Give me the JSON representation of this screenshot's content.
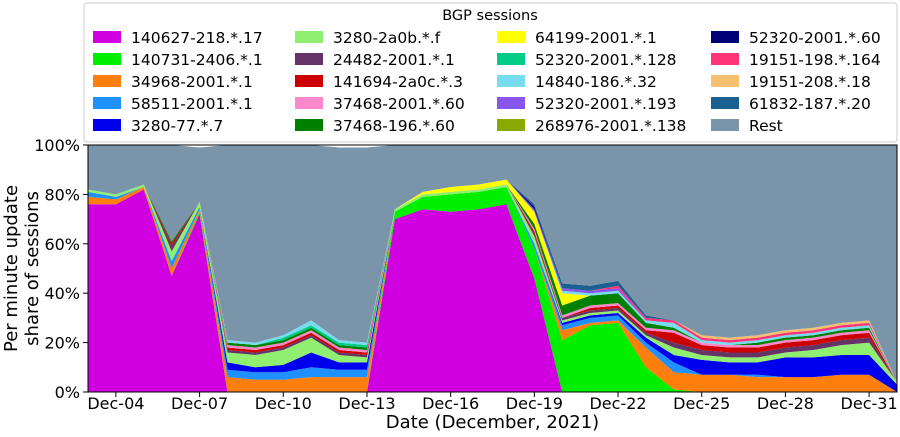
{
  "chart_data": {
    "type": "area",
    "stacked": true,
    "title": "",
    "xlabel": "Date (December, 2021)",
    "ylabel_lines": [
      "Per minute update",
      "share of sessions"
    ],
    "ylim": [
      0,
      100
    ],
    "xlim": [
      3,
      32
    ],
    "yticks": [
      0,
      20,
      40,
      60,
      80,
      100
    ],
    "ytick_labels": [
      "0%",
      "20%",
      "40%",
      "60%",
      "80%",
      "100%"
    ],
    "xticks": [
      4,
      7,
      10,
      13,
      16,
      19,
      22,
      25,
      28,
      31
    ],
    "xtick_labels": [
      "Dec-04",
      "Dec-07",
      "Dec-10",
      "Dec-13",
      "Dec-16",
      "Dec-19",
      "Dec-22",
      "Dec-25",
      "Dec-28",
      "Dec-31"
    ],
    "grid": false,
    "legend_title": "BGP sessions",
    "legend_position": "top",
    "legend_columns": 4,
    "x": [
      3.0,
      4.0,
      5.0,
      6.0,
      7.0,
      8.0,
      9.0,
      10.0,
      11.0,
      12.0,
      13.0,
      14.0,
      15.0,
      16.0,
      17.0,
      18.0,
      19.0,
      20.0,
      21.0,
      22.0,
      23.0,
      24.0,
      25.0,
      26.0,
      27.0,
      28.0,
      29.0,
      30.0,
      31.0,
      32.0
    ],
    "series": [
      {
        "name": "140627-218.*.17",
        "color": "#d000e0",
        "values": [
          76,
          76,
          82,
          47,
          72,
          0,
          0,
          0,
          0,
          0,
          0,
          70,
          74,
          73,
          74,
          76,
          46,
          0,
          0,
          0,
          0,
          0,
          0,
          0,
          0,
          0,
          0,
          0,
          0,
          0
        ]
      },
      {
        "name": "140731-2406.*.1",
        "color": "#00ee00",
        "values": [
          0,
          0,
          0,
          0,
          1,
          0,
          0,
          0,
          0,
          0,
          0,
          3,
          5,
          7,
          7,
          7,
          12,
          21,
          27,
          28,
          10,
          1,
          0,
          0,
          0,
          0,
          0,
          0,
          0,
          0
        ]
      },
      {
        "name": "34968-2001.*.1",
        "color": "#ff7f0e",
        "values": [
          3,
          2,
          1,
          3,
          1,
          6,
          5,
          5,
          6,
          6,
          6,
          0,
          0,
          0,
          0,
          0,
          0,
          4,
          1,
          1,
          8,
          7,
          7,
          7,
          6,
          6,
          6,
          7,
          7,
          0
        ]
      },
      {
        "name": "58511-2001.*.1",
        "color": "#1e90ff",
        "values": [
          2,
          1,
          0,
          3,
          1,
          3,
          3,
          3,
          4,
          3,
          3,
          0,
          0,
          0,
          0,
          0,
          2,
          2,
          2,
          2,
          2,
          4,
          0,
          0,
          1,
          0,
          0,
          0,
          0,
          0
        ]
      },
      {
        "name": "3280-77.*.7",
        "color": "#0000ee",
        "values": [
          0,
          0,
          0,
          0,
          0,
          3,
          2,
          3,
          6,
          3,
          3,
          0,
          0,
          0,
          0,
          0,
          0,
          1,
          1,
          1,
          2,
          3,
          6,
          5,
          5,
          8,
          8,
          8,
          8,
          3
        ]
      },
      {
        "name": "3280-2a0b.*.f",
        "color": "#90ee70",
        "values": [
          1,
          1,
          1,
          4,
          2,
          4,
          5,
          6,
          6,
          3,
          2,
          1,
          1,
          1,
          1,
          1,
          3,
          1,
          1,
          1,
          1,
          3,
          2,
          2,
          2,
          2,
          3,
          4,
          5,
          1
        ]
      },
      {
        "name": "24482-2001.*.1",
        "color": "#663366",
        "values": [
          0,
          0,
          0,
          2,
          0,
          1,
          1,
          1,
          1,
          1,
          1,
          0,
          0,
          0,
          0,
          0,
          1,
          1,
          1,
          1,
          1,
          2,
          2,
          2,
          2,
          2,
          2,
          2,
          2,
          0
        ]
      },
      {
        "name": "141694-2a0c.*.3",
        "color": "#cc0000",
        "values": [
          0,
          0,
          0,
          1,
          0,
          1,
          1,
          1,
          1,
          1,
          1,
          0,
          0,
          0,
          0,
          0,
          1,
          0,
          1,
          1,
          1,
          4,
          2,
          2,
          2,
          2,
          2,
          2,
          2,
          0
        ]
      },
      {
        "name": "37468-2001.*.60",
        "color": "#ff88cc",
        "values": [
          0,
          0,
          0,
          0,
          0,
          1,
          1,
          1,
          1,
          1,
          1,
          0,
          0,
          0,
          0,
          0,
          1,
          1,
          1,
          1,
          1,
          1,
          1,
          1,
          1,
          1,
          1,
          1,
          1,
          0
        ]
      },
      {
        "name": "37468-196.*.60",
        "color": "#008000",
        "values": [
          0,
          0,
          0,
          1,
          0,
          1,
          1,
          1,
          1,
          1,
          1,
          0,
          0,
          0,
          0,
          0,
          2,
          4,
          4,
          4,
          2,
          1,
          0,
          0,
          1,
          1,
          1,
          1,
          1,
          0
        ]
      },
      {
        "name": "64199-2001.*.1",
        "color": "#ffff00",
        "values": [
          0,
          0,
          0,
          0,
          0,
          0,
          0,
          0,
          0,
          0,
          0,
          0,
          1,
          2,
          2,
          2,
          5,
          5,
          0,
          0,
          0,
          0,
          0,
          0,
          0,
          0,
          0,
          0,
          0,
          0
        ]
      },
      {
        "name": "52320-2001.*.128",
        "color": "#00cc88",
        "values": [
          0,
          0,
          0,
          0,
          0,
          0,
          0,
          1,
          1,
          1,
          1,
          0,
          0,
          0,
          0,
          0,
          0,
          0,
          0,
          0,
          0,
          0,
          0,
          0,
          0,
          0,
          0,
          0,
          0,
          0
        ]
      },
      {
        "name": "14840-186.*.32",
        "color": "#77ddee",
        "values": [
          0,
          0,
          0,
          0,
          0,
          1,
          1,
          1,
          2,
          1,
          1,
          0,
          0,
          0,
          0,
          0,
          0,
          1,
          1,
          1,
          1,
          2,
          1,
          1,
          1,
          1,
          1,
          1,
          1,
          0
        ]
      },
      {
        "name": "52320-2001.*.193",
        "color": "#8855ee",
        "values": [
          0,
          0,
          0,
          0,
          0,
          0,
          0,
          0,
          0,
          0,
          0,
          0,
          0,
          0,
          0,
          0,
          1,
          1,
          1,
          1,
          0,
          0,
          0,
          0,
          0,
          0,
          0,
          0,
          0,
          0
        ]
      },
      {
        "name": "268976-2001.*.138",
        "color": "#88aa00",
        "values": [
          0,
          0,
          0,
          0,
          0,
          0,
          0,
          0,
          0,
          0,
          0,
          0,
          0,
          0,
          0,
          0,
          0,
          0,
          0,
          0,
          0,
          0,
          0,
          0,
          0,
          0,
          0,
          0,
          0,
          0
        ]
      },
      {
        "name": "52320-2001.*.60",
        "color": "#000077",
        "values": [
          0,
          0,
          0,
          0,
          0,
          0,
          0,
          0,
          0,
          0,
          0,
          0,
          0,
          0,
          0,
          0,
          1,
          0,
          0,
          0,
          0,
          0,
          0,
          0,
          0,
          0,
          0,
          0,
          0,
          0
        ]
      },
      {
        "name": "19151-198.*.164",
        "color": "#ff3377",
        "values": [
          0,
          0,
          0,
          0,
          0,
          0,
          0,
          0,
          0,
          0,
          0,
          0,
          0,
          0,
          0,
          0,
          0,
          0,
          0,
          1,
          1,
          1,
          1,
          1,
          1,
          1,
          1,
          1,
          1,
          0
        ]
      },
      {
        "name": "19151-208.*.18",
        "color": "#f5c070",
        "values": [
          0,
          0,
          0,
          0,
          0,
          0,
          0,
          0,
          0,
          0,
          0,
          0,
          0,
          0,
          0,
          0,
          0,
          0,
          0,
          0,
          0,
          0,
          1,
          1,
          1,
          1,
          1,
          1,
          1,
          0
        ]
      },
      {
        "name": "61832-187.*.20",
        "color": "#1a6090",
        "values": [
          0,
          0,
          0,
          0,
          0,
          0,
          0,
          0,
          0,
          0,
          0,
          0,
          0,
          0,
          0,
          0,
          1,
          2,
          2,
          2,
          1,
          0,
          0,
          0,
          0,
          0,
          0,
          0,
          0,
          0
        ]
      },
      {
        "name": "Rest",
        "color": "#7a95aa",
        "values": [
          18,
          20,
          16,
          39,
          22,
          79,
          80,
          77,
          71,
          78,
          79,
          26,
          19,
          17,
          16,
          14,
          24,
          56,
          57,
          55,
          70,
          71,
          77,
          79,
          77,
          76,
          74,
          73,
          72,
          96
        ]
      }
    ]
  }
}
